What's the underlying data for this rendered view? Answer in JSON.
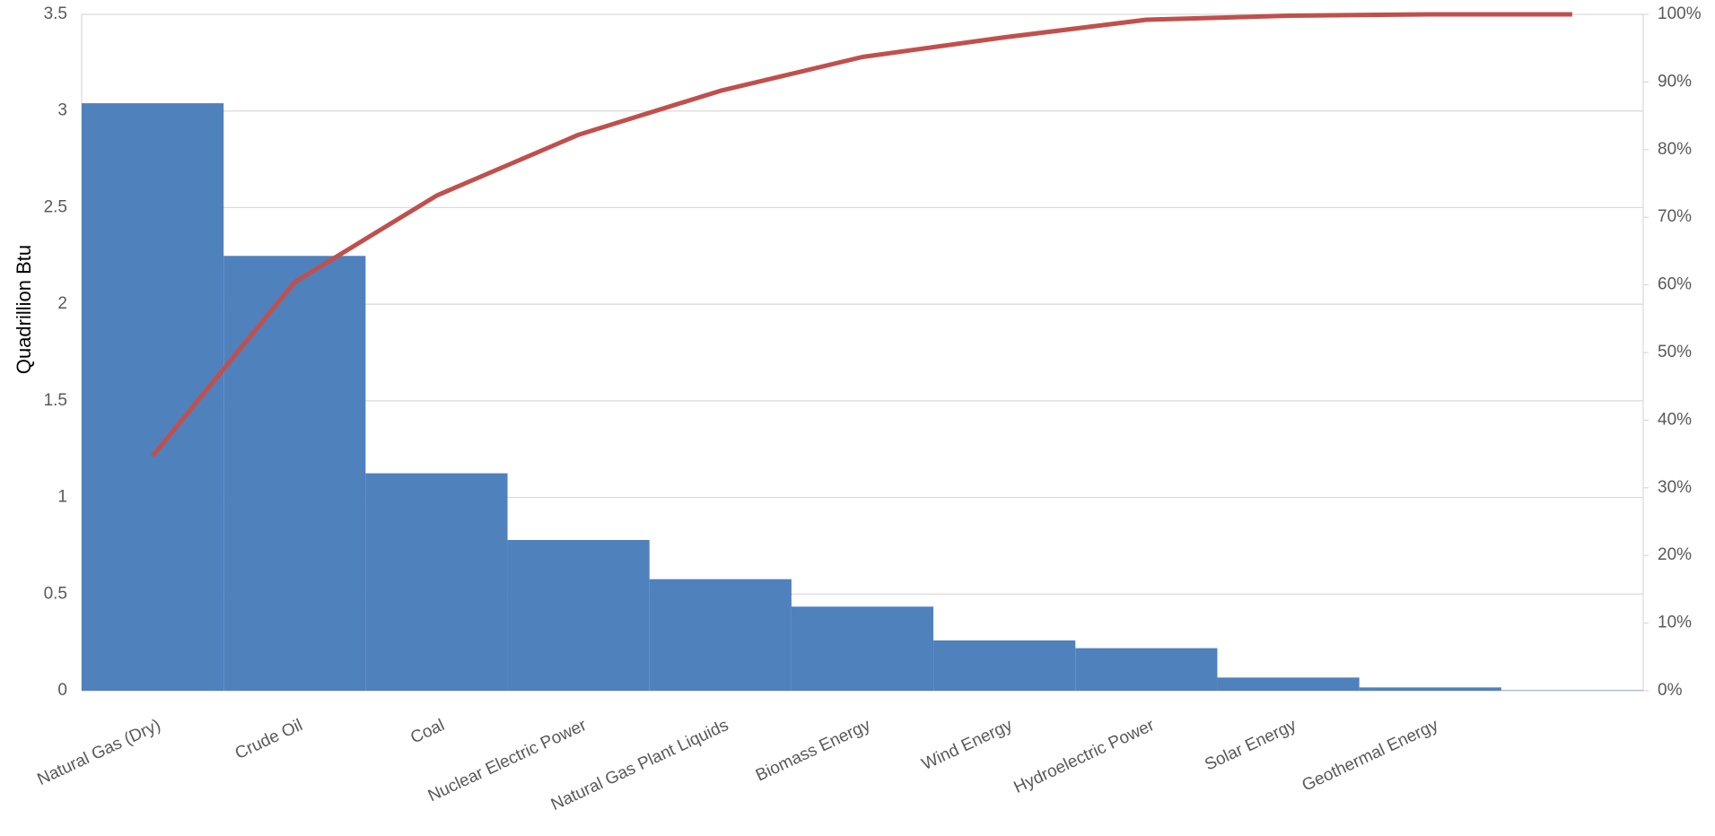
{
  "chart_data": {
    "type": "bar",
    "y_label": "Quadrillion Btu",
    "categories": [
      "Natural Gas (Dry)",
      "Crude Oil",
      "Coal",
      "Nuclear Electric Power",
      "Natural Gas Plant Liquids",
      "Biomass Energy",
      "Wind Energy",
      "Hydroelectric Power",
      "Solar Energy",
      "Geothermal Energy",
      null
    ],
    "series": [
      {
        "type": "bar",
        "color": "#4f81bd",
        "values": [
          3.04,
          2.25,
          1.125,
          0.78,
          0.577,
          0.435,
          0.26,
          0.22,
          0.068,
          0.017,
          0.002
        ]
      },
      {
        "type": "line",
        "color": "#c0504d",
        "axis": "y2",
        "values": [
          34.7,
          60.4,
          73.2,
          82.2,
          88.7,
          93.7,
          96.6,
          99.2,
          99.8,
          100,
          100
        ]
      }
    ],
    "ylim": [
      0,
      3.5
    ],
    "yticks": [
      0,
      0.5,
      1,
      1.5,
      2,
      2.5,
      3,
      3.5
    ],
    "y2lim": [
      0,
      100
    ],
    "y2ticks": [
      {
        "value": 0,
        "label": "0%"
      },
      {
        "value": 10,
        "label": "10%"
      },
      {
        "value": 20,
        "label": "20%"
      },
      {
        "value": 30,
        "label": "30%"
      },
      {
        "value": 40,
        "label": "40%"
      },
      {
        "value": 50,
        "label": "50%"
      },
      {
        "value": 60,
        "label": "60%"
      },
      {
        "value": 70,
        "label": "70%"
      },
      {
        "value": 80,
        "label": "80%"
      },
      {
        "value": 90,
        "label": "90%"
      },
      {
        "value": 100,
        "label": "100%"
      }
    ],
    "grid": true
  }
}
